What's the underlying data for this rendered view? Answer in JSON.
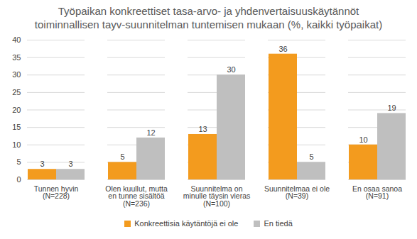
{
  "chart_data": {
    "type": "bar",
    "title": "Työpaikan konkreettiset tasa-arvo- ja yhdenvertaisuuskäytännöt toiminnallisen tayv-suunnitelman tuntemisen mukaan (%, kaikki työpaikat)",
    "categories": [
      "Tunnen hyvin (N=228)",
      "Olen kuullut, mutta en tunne sisältöä (N=236)",
      "Suunnitelma on minulle täysin vieras (N=100)",
      "Suunnitelmaa ei ole (N=39)",
      "En osaa sanoa (N=91)"
    ],
    "series": [
      {
        "name": "Konkreettisia käytäntöjä ei ole",
        "color": "#f39b1e",
        "values": [
          3,
          5,
          13,
          36,
          10
        ]
      },
      {
        "name": "En tiedä",
        "color": "#bfbfbf",
        "values": [
          3,
          12,
          30,
          5,
          19
        ]
      }
    ],
    "ylim": [
      0,
      40
    ],
    "yticks": [
      0,
      5,
      10,
      15,
      20,
      25,
      30,
      35,
      40
    ],
    "grid": true,
    "data_labels": true,
    "legend": "bottom"
  }
}
